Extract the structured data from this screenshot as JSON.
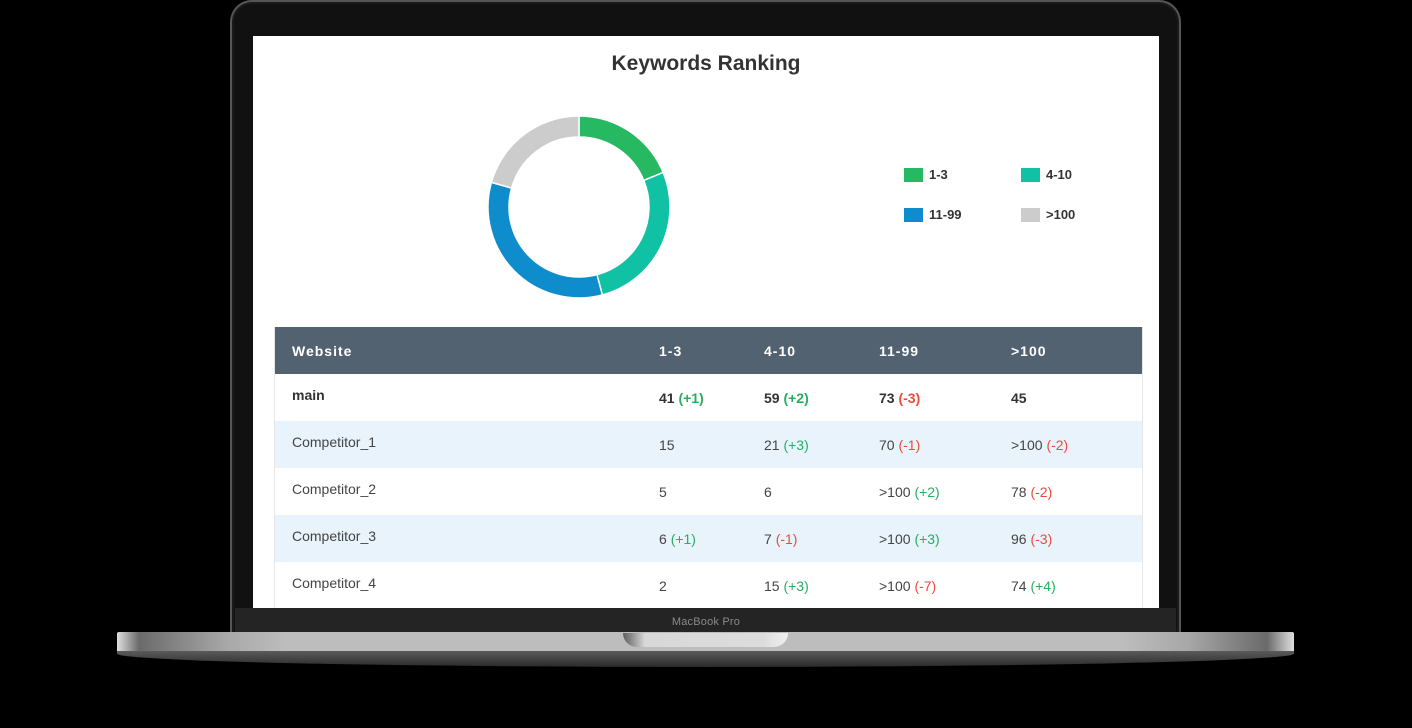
{
  "device": {
    "label": "MacBook Pro"
  },
  "page": {
    "title": "Keywords Ranking"
  },
  "legend": [
    {
      "label": "1-3",
      "color": "#27b862"
    },
    {
      "label": "4-10",
      "color": "#10c1a4"
    },
    {
      "label": "11-99",
      "color": "#0e8ccb"
    },
    {
      "label": ">100",
      "color": "#cccccc"
    }
  ],
  "chart_data": {
    "type": "pie",
    "variant": "donut",
    "title": "Keywords Ranking",
    "categories": [
      "1-3",
      "4-10",
      "11-99",
      ">100"
    ],
    "values": [
      41,
      59,
      73,
      45
    ],
    "colors": [
      "#27b862",
      "#10c1a4",
      "#0e8ccb",
      "#cccccc"
    ],
    "legend_position": "right"
  },
  "table": {
    "headers": [
      "Website",
      "1-3",
      "4-10",
      "11-99",
      ">100"
    ],
    "rows": [
      {
        "website": "main",
        "bold": true,
        "cells": [
          {
            "value": "41",
            "delta": "(+1)",
            "trend": "up"
          },
          {
            "value": "59",
            "delta": "(+2)",
            "trend": "up"
          },
          {
            "value": "73",
            "delta": "(-3)",
            "trend": "down"
          },
          {
            "value": "45",
            "delta": "",
            "trend": ""
          }
        ]
      },
      {
        "website": "Competitor_1",
        "bold": false,
        "cells": [
          {
            "value": "15",
            "delta": "",
            "trend": ""
          },
          {
            "value": "21",
            "delta": "(+3)",
            "trend": "up"
          },
          {
            "value": "70",
            "delta": "(-1)",
            "trend": "down"
          },
          {
            "value": ">100",
            "delta": "(-2)",
            "trend": "down"
          }
        ]
      },
      {
        "website": "Competitor_2",
        "bold": false,
        "cells": [
          {
            "value": "5",
            "delta": "",
            "trend": ""
          },
          {
            "value": "6",
            "delta": "",
            "trend": ""
          },
          {
            "value": ">100",
            "delta": "(+2)",
            "trend": "up"
          },
          {
            "value": "78",
            "delta": "(-2)",
            "trend": "down"
          }
        ]
      },
      {
        "website": "Competitor_3",
        "bold": false,
        "cells": [
          {
            "value": "6",
            "delta": "(+1)",
            "trend": "up"
          },
          {
            "value": "7",
            "delta": "(-1)",
            "trend": "down"
          },
          {
            "value": ">100",
            "delta": "(+3)",
            "trend": "up"
          },
          {
            "value": "96",
            "delta": "(-3)",
            "trend": "down"
          }
        ]
      },
      {
        "website": "Competitor_4",
        "bold": false,
        "cells": [
          {
            "value": "2",
            "delta": "",
            "trend": ""
          },
          {
            "value": "15",
            "delta": "(+3)",
            "trend": "up"
          },
          {
            "value": ">100",
            "delta": "(-7)",
            "trend": "down"
          },
          {
            "value": "74",
            "delta": "(+4)",
            "trend": "up"
          }
        ]
      }
    ]
  }
}
